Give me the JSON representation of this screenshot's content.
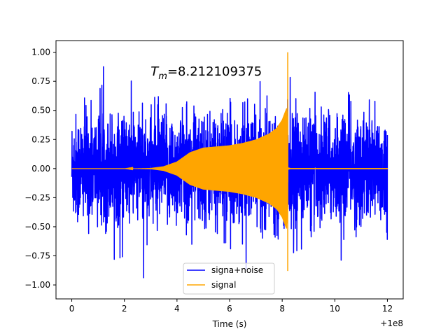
{
  "chart_data": {
    "type": "line",
    "title": "",
    "xlabel": "Time (s)",
    "ylabel": "",
    "x_offset_label": "+1e8",
    "xlim": [
      -0.6,
      12.6
    ],
    "ylim": [
      -1.12,
      1.1
    ],
    "x_ticks": [
      0,
      2,
      4,
      6,
      8,
      10,
      12
    ],
    "x_tick_labels": [
      "0",
      "2",
      "4",
      "6",
      "8",
      "10",
      "12"
    ],
    "y_ticks": [
      -1.0,
      -0.75,
      -0.5,
      -0.25,
      0.0,
      0.25,
      0.5,
      0.75,
      1.0
    ],
    "y_tick_labels": [
      "−1.00",
      "−0.75",
      "−0.50",
      "−0.25",
      "0.00",
      "0.25",
      "0.50",
      "0.75",
      "1.00"
    ],
    "grid": false,
    "legend_position": "lower-center",
    "annotation": {
      "symbol": "T",
      "subscript": "m",
      "value_text": "=8.212109375",
      "x": 3.0,
      "y": 0.8
    },
    "series": [
      {
        "name": "signa+noise",
        "color": "#0000ff",
        "description_stats": {
          "x_start": 0.0,
          "x_end": 12.0,
          "typical_range": [
            -0.55,
            0.55
          ],
          "min": -1.03,
          "max": 0.96
        }
      },
      {
        "name": "signal",
        "color": "#ffa500",
        "envelope": {
          "x": [
            0,
            1,
            2,
            3,
            3.5,
            4,
            4.5,
            5,
            5.5,
            6,
            6.5,
            7,
            7.5,
            7.8,
            8.0,
            8.1,
            8.17,
            8.21,
            8.22,
            8.3,
            12.0
          ],
          "amplitude": [
            0.0,
            0.0,
            0.0,
            0.005,
            0.02,
            0.06,
            0.14,
            0.18,
            0.19,
            0.2,
            0.22,
            0.25,
            0.3,
            0.35,
            0.42,
            0.48,
            0.52,
            0.3,
            0.01,
            0.005,
            0.005
          ]
        },
        "spike": {
          "x": 8.21,
          "max": 1.0,
          "min": -0.88
        }
      }
    ]
  }
}
